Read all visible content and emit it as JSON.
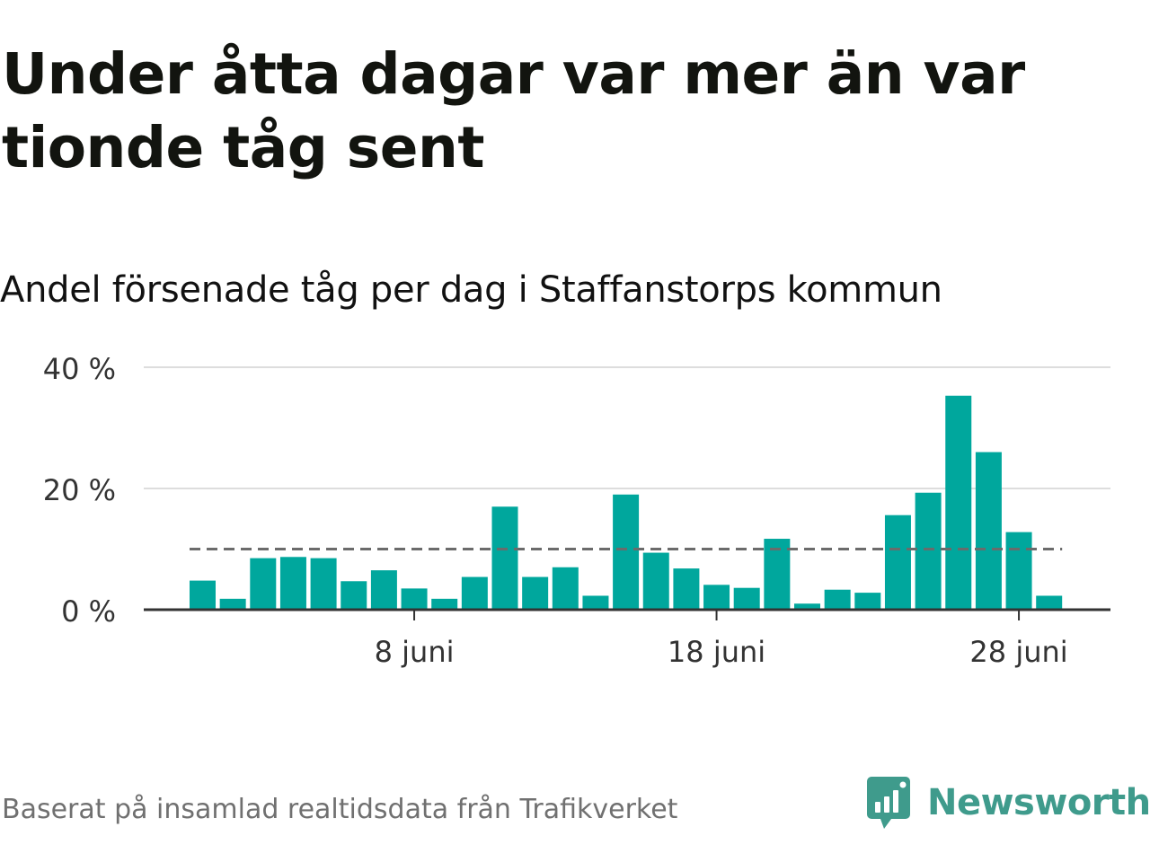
{
  "title": "Under åtta dagar var mer än var tionde tåg sent",
  "subtitle": "Andel försenade tåg per dag i Staffanstorps kommun",
  "source": "Baserat på insamlad realtidsdata från Trafikverket",
  "brand": {
    "name": "Newsworthy",
    "icon": "newsworthy-logo-icon",
    "color": "#3f9b8c"
  },
  "chart_data": {
    "type": "bar",
    "x": [
      "2024-06-01",
      "2024-06-02",
      "2024-06-03",
      "2024-06-04",
      "2024-06-05",
      "2024-06-06",
      "2024-06-07",
      "2024-06-08",
      "2024-06-09",
      "2024-06-10",
      "2024-06-11",
      "2024-06-12",
      "2024-06-13",
      "2024-06-14",
      "2024-06-15",
      "2024-06-16",
      "2024-06-17",
      "2024-06-18",
      "2024-06-19",
      "2024-06-20",
      "2024-06-21",
      "2024-06-22",
      "2024-06-23",
      "2024-06-24",
      "2024-06-25",
      "2024-06-26",
      "2024-06-27",
      "2024-06-28",
      "2024-06-29"
    ],
    "values": [
      4.8,
      1.8,
      8.5,
      8.7,
      8.5,
      4.7,
      6.5,
      3.5,
      1.8,
      5.4,
      17.0,
      5.4,
      7.0,
      2.3,
      19.0,
      9.4,
      6.8,
      4.1,
      3.6,
      11.7,
      1.0,
      3.3,
      2.8,
      15.6,
      19.3,
      35.3,
      26.0,
      12.8,
      2.3
    ],
    "series_color": "#00a79d",
    "reference_line": {
      "value": 10,
      "style": "dashed",
      "color": "#6b6b6b"
    },
    "yticks": [
      {
        "value": 0,
        "label": "0 %"
      },
      {
        "value": 20,
        "label": "20 %"
      },
      {
        "value": 40,
        "label": "40 %"
      }
    ],
    "xticks": [
      {
        "index": 7,
        "label": "8 juni"
      },
      {
        "index": 17,
        "label": "18 juni"
      },
      {
        "index": 27,
        "label": "28 juni"
      }
    ],
    "ylim": [
      0,
      40
    ],
    "grid": true,
    "xlabel": "",
    "ylabel": ""
  }
}
